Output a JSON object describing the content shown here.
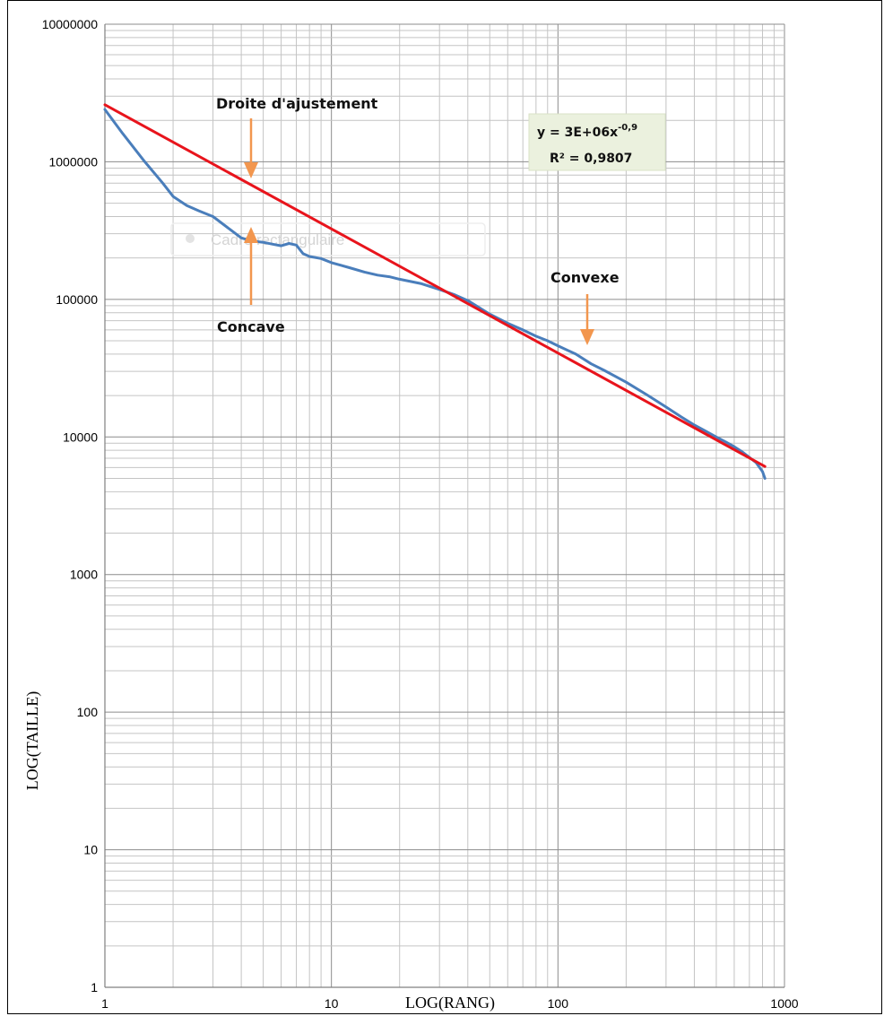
{
  "chart_data": {
    "type": "line",
    "xlabel": "LOG(RANG)",
    "ylabel": "LOG(TAILLE)",
    "x_scale": "log",
    "y_scale": "log",
    "xlim": [
      1,
      1000
    ],
    "ylim": [
      1,
      10000000
    ],
    "x_ticks": [
      "1",
      "10",
      "100",
      "1000"
    ],
    "y_ticks": [
      "1",
      "10",
      "100",
      "1000",
      "10000",
      "100000",
      "1000000",
      "10000000"
    ],
    "grid": true,
    "legend": "none",
    "colors": {
      "data": "#4a7ebb",
      "fit": "#e8141c",
      "arrow": "#f2964e",
      "eq_box": "#ebf1de"
    },
    "series": [
      {
        "kind": "data",
        "x": [
          1,
          1.2,
          1.5,
          1.8,
          2,
          2.3,
          2.6,
          3,
          3.5,
          4,
          4.5,
          5,
          5.5,
          6,
          6.5,
          7,
          7.5,
          8,
          9,
          10,
          12,
          14,
          16,
          18,
          20,
          25,
          30,
          35,
          40,
          50,
          60,
          70,
          80,
          90,
          100,
          120,
          140,
          160,
          180,
          200,
          250,
          300,
          350,
          400,
          450,
          500,
          550,
          600,
          650,
          700,
          750,
          800,
          820
        ],
        "y": [
          2400000,
          1600000,
          1000000,
          700000,
          560000,
          480000,
          440000,
          400000,
          330000,
          280000,
          265000,
          260000,
          252000,
          245000,
          255000,
          248000,
          215000,
          205000,
          198000,
          185000,
          170000,
          158000,
          150000,
          146000,
          140000,
          130000,
          118000,
          108000,
          98000,
          78000,
          67000,
          60000,
          54000,
          50000,
          46000,
          40000,
          34000,
          30500,
          27500,
          25000,
          20000,
          16500,
          14000,
          12200,
          11000,
          10000,
          9200,
          8500,
          7800,
          7100,
          6500,
          5600,
          5000
        ]
      },
      {
        "kind": "fit",
        "x": [
          1,
          820
        ],
        "y": [
          2600000,
          6100
        ]
      }
    ],
    "annotations": {
      "fit_line": "Droite d'ajustement",
      "concave": "Concave",
      "convexe": "Convexe",
      "equation_base": "y = 3E+06x",
      "equation_exp": "-0,9",
      "r2": "R² = 0,9807",
      "ghost_label": "Cadre rectangulaire"
    }
  }
}
